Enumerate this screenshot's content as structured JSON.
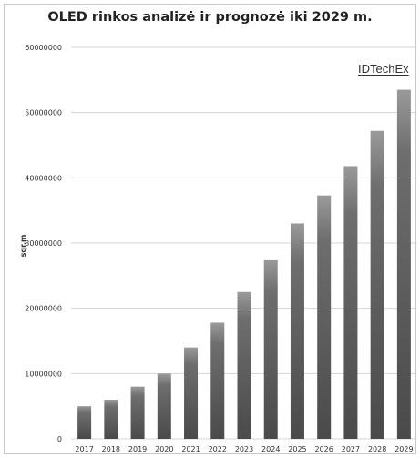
{
  "chart_data": {
    "type": "bar",
    "title": "OLED rinkos analizė ir prognozė iki 2029 m.",
    "xlabel": "",
    "ylabel": "sqr.m",
    "categories": [
      "2017",
      "2018",
      "2019",
      "2020",
      "2021",
      "2022",
      "2023",
      "2024",
      "2025",
      "2026",
      "2027",
      "2028",
      "2029"
    ],
    "values": [
      5000000,
      6000000,
      8000000,
      10000000,
      14000000,
      17800000,
      22500000,
      27500000,
      33000000,
      37300000,
      41800000,
      47200000,
      53500000
    ],
    "ylim": [
      0,
      60000000
    ],
    "yticks": [
      "0",
      "10000000",
      "20000000",
      "30000000",
      "40000000",
      "50000000",
      "60000000"
    ],
    "grid": true,
    "bar_color": "#5a5a5a"
  },
  "brand": {
    "label": "IDTechEx"
  }
}
